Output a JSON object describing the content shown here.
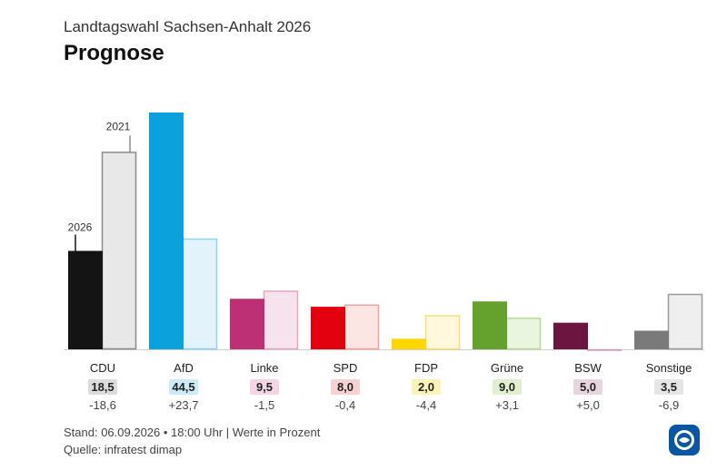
{
  "header": {
    "subtitle": "Landtagswahl Sachsen-Anhalt 2026",
    "title": "Prognose"
  },
  "footer": {
    "line1": "Stand: 06.09.2026 • 18:00 Uhr | Werte in Prozent",
    "line2": "Quelle: infratest dimap"
  },
  "logo": {
    "icon": "ard-tagesschau-logo-icon"
  },
  "chart_data": {
    "type": "bar",
    "year_labels": [
      "2026",
      "2021"
    ],
    "categories": [
      "CDU",
      "AfD",
      "Linke",
      "SPD",
      "FDP",
      "Grüne",
      "BSW",
      "Sonstige"
    ],
    "values_2026": [
      18.5,
      44.5,
      9.5,
      8.0,
      2.0,
      9.0,
      5.0,
      3.5
    ],
    "values_2021": [
      37.1,
      20.8,
      11.0,
      8.4,
      6.4,
      5.9,
      0.0,
      10.4
    ],
    "value_labels": [
      "18,5",
      "44,5",
      "9,5",
      "8,0",
      "2,0",
      "9,0",
      "5,0",
      "3,5"
    ],
    "diff_labels": [
      "-18,6",
      "+23,7",
      "-1,5",
      "-0,4",
      "-4,4",
      "+3,1",
      "+5,0",
      "-6,9"
    ],
    "colors": [
      "#141414",
      "#0aa1dd",
      "#be3075",
      "#e3000f",
      "#ffd600",
      "#64a12d",
      "#6b1540",
      "#7a7a7a"
    ],
    "colors_2021_fill": [
      "#e8e8e8",
      "#e2f3fb",
      "#f7e3ee",
      "#fbe6e3",
      "#fff8dc",
      "#e9f5de",
      "#f0e2e8",
      "#efefef"
    ],
    "colors_2021_stroke": [
      "#8a8a8a",
      "#8fd3ee",
      "#e3a6c4",
      "#f0a39c",
      "#f3e07a",
      "#b6da96",
      "#c9a0b5",
      "#9a9a9a"
    ],
    "label_bg": [
      "#dcdcdc",
      "#cdeaf7",
      "#f3d6e5",
      "#f6d2d2",
      "#fbf3b8",
      "#e0efcf",
      "#e8d4de",
      "#e6e6e6"
    ],
    "ylim": [
      0,
      45
    ]
  }
}
